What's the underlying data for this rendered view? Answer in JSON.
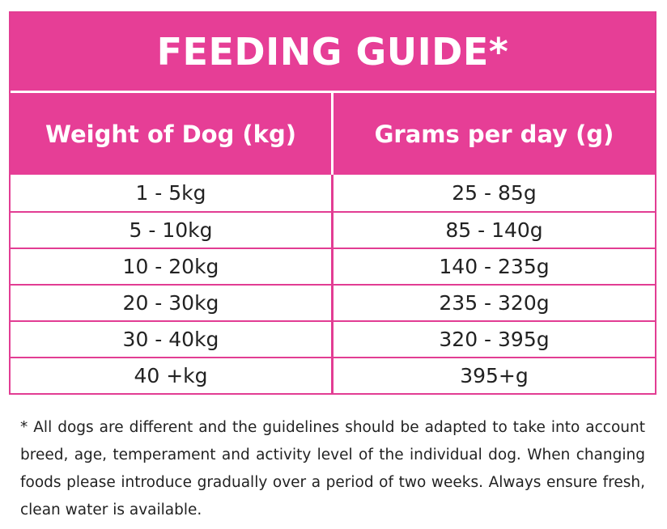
{
  "title": "FEEDING GUIDE*",
  "headers": [
    "Weight of Dog (kg)",
    "Grams per day (g)"
  ],
  "rows": [
    [
      "1 - 5kg",
      "25 - 85g"
    ],
    [
      "5 - 10kg",
      "85 - 140g"
    ],
    [
      "10 - 20kg",
      "140 - 235g"
    ],
    [
      "20 - 30kg",
      "235 - 320g"
    ],
    [
      "30 - 40kg",
      "320 - 395g"
    ],
    [
      "40 +kg",
      "395+g"
    ]
  ],
  "footnote": "* All dogs are different and the guidelines should be adapted to take into account breed, age, temperament and activity level of the individual dog. When changing foods please introduce gradually over a period of two weeks. Always ensure fresh, clean water is available.",
  "colors": {
    "accent": "#e63e96"
  }
}
